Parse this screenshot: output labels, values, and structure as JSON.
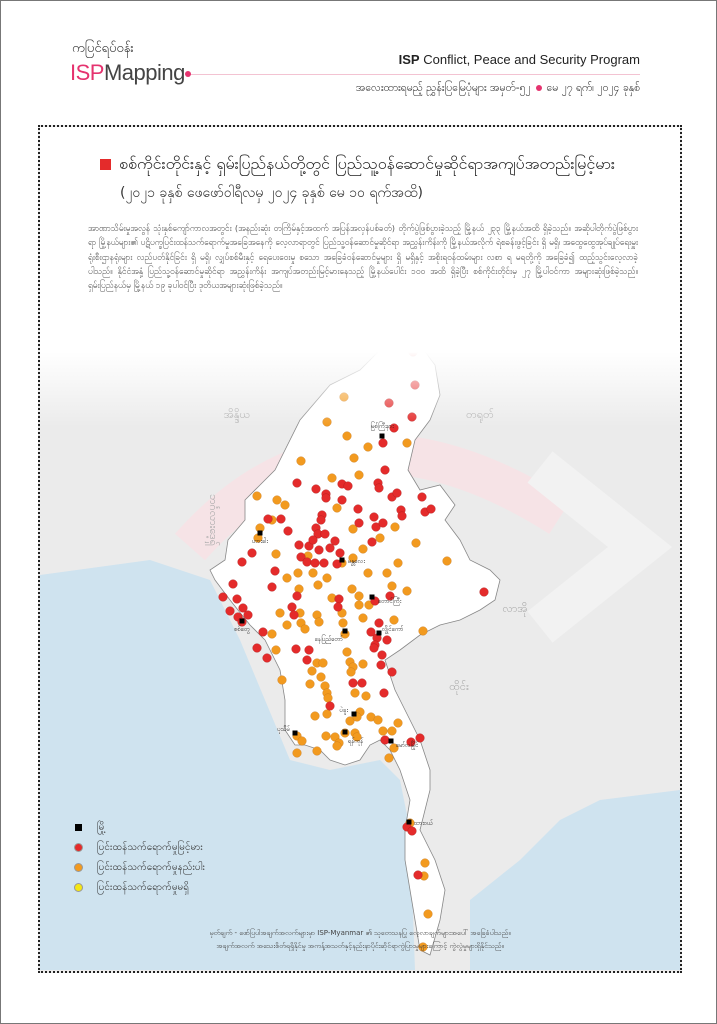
{
  "header": {
    "brand_top": "ကပြင်ရပ်ဝန်း",
    "brand_isp": "ISP",
    "brand_rest": "Mapping",
    "program_isp": "ISP",
    "program_rest": "Conflict, Peace and Security Program",
    "issue_text": "အလေးထားရမည့် ညွှန်းပြမြေပုံများ အမှတ်-၅၂",
    "issue_date": "မေ ၂၇ ရက်၊ ၂၀၂၄ ခုနှစ်"
  },
  "colors": {
    "accent": "#e5336f",
    "high": "#e42b2b",
    "medium": "#f29a1f",
    "none": "#f5e615",
    "sea": "#cfe3ef",
    "land": "#ebebeb",
    "myanmar": "#ffffff"
  },
  "title": "စစ်ကိုင်းတိုင်းနှင့် ရှမ်းပြည်နယ်တို့တွင် ပြည်သူ့ဝန်ဆောင်မှုဆိုင်ရာအကျပ်အတည်းမြင့်မား",
  "subtitle": "(၂၀၂၁ ခုနှစ် ဖေဖော်ဝါရီလမှ ၂၀၂၄ ခုနှစ် မေ ၁၀ ရက်အထိ)",
  "paragraph": "အာဏာသိမ်းမှုအလွန် သုံးနှစ်ကျော်ကာလအတွင်း (အနည်းဆုံး တကြိမ်နှင့်အထက် အပြန်အလှန်ပစ်ခတ်) တိုက်ပွဲဖြစ်ပွားခဲ့သည့် မြို့နယ် ၂၃၃ မြို့နယ်အထိ ရှိခဲ့သည်။ အဆိုပါတိုက်ပွဲဖြစ်ပွားရာ မြို့နယ်များ၏ ပဋိပက္ခပြင်းထန်သက်ရောက်မှုအခြေအနေကို လေ့လာရာတွင် ပြည်သူ့ဝန်ဆောင်မှုဆိုင်ရာ အညွှန်းကိန်းကို မြို့နယ်အလိုက် ရဲစခန်းဖွင့်ခြင်း ရှိ မရှိ၊ အထွေထွေအုပ်ချုပ်ရေးမှူးရုံးစီးဌာနရုံးများ လည်ပတ်နိုင်ခြင်း ရှိ မရှိ၊ လျှပ်စစ်မီးနှင့် ရေပေးဝေးမှု စသော အခြေခံဝန်ဆောင်မှုများ ရှိ မရှိနှင့် အစိုးရဝန်ထမ်းများ လစာ ရ မရတို့ကို အခြေခံ၍ ထည့်သွင်းလေ့လာခဲ့ပါသည်။ နိုင်ငံအနှံ့ ပြည်သူ့ဝန်ဆောင်မှုဆိုင်ရာ အညွှန်းကိန်း အကျပ်အတည်းမြင့်မားနေသည့် မြို့နယ်ပေါင်း ၁၀၀ အထိ ရှိခဲ့ပြီး စစ်ကိုင်းတိုင်းမှ ၂၇ မြို့ပါဝင်ကာ အများဆုံးဖြစ်ခဲ့သည်။ ရှမ်းပြည်နယ်မှ မြို့နယ် ၁၉ ခုပါဝင်ပြီး ဒုတိယအများဆုံးဖြစ်ခဲ့သည်။",
  "countries": [
    "အိန္ဒိယ",
    "တရုတ်",
    "ဘင်္ဂလားဒေ့ရှ်",
    "လာအို",
    "ထိုင်း"
  ],
  "cities": [
    "မြစ်ကြီးနား",
    "ဟားခါး",
    "မန္တလေး",
    "တောင်ကြီး",
    "စစ်တွေ",
    "နေပြည်တော်",
    "လွိုင်ကော်",
    "ပဲခူး",
    "ပုသိမ်",
    "ရန်ကုန်",
    "မော်လမြိုင်",
    "ထားဝယ်"
  ],
  "legend": [
    {
      "label": "မြို့",
      "symbol": "black-square"
    },
    {
      "label": "ပြင်းထန်သက်ရောက်မှုမြင့်မား",
      "symbol": "red-circle"
    },
    {
      "label": "ပြင်းထန်သက်ရောက်မှုနည်းပါး",
      "symbol": "orange-circle"
    },
    {
      "label": "ပြင်းထန်သက်ရောက်မှုမရှိ",
      "symbol": "yellow-circle"
    }
  ],
  "note_line1": "မှတ်ချက် - ဖော်ပြပါအချက်အလက်များမှာ ISP-Myanmar ၏ သုတေသနပြု လေ့လာချက်များအပေါ် အခြေခံပါသည်။",
  "note_line2": "အချက်အလက် အသေးစိတ်ရရှိနိုင်မှု အကန့်အသတ်နှင့်နည်းနာပိုင်းဆိုင်ရာကွဲပြားမှုများကြောင့် ကွဲလွဲမှုများရှိနိုင်သည်။"
}
